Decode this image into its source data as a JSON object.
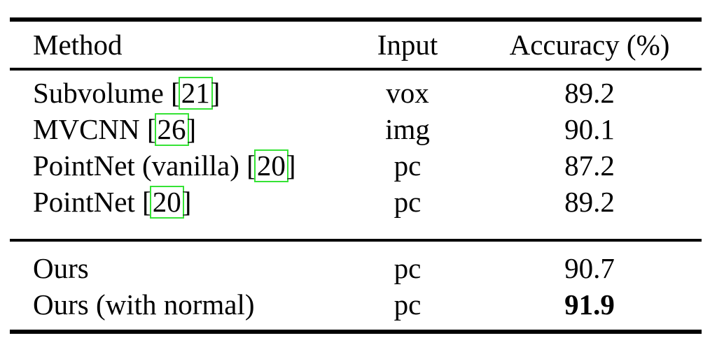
{
  "table": {
    "header": {
      "method": "Method",
      "input": "Input",
      "accuracy": "Accuracy (%)"
    },
    "groups": [
      {
        "rows": [
          {
            "method_pre": "Subvolume [",
            "cite": "21",
            "method_post": "]",
            "input": "vox",
            "accuracy": "89.2"
          },
          {
            "method_pre": "MVCNN [",
            "cite": "26",
            "method_post": "]",
            "input": "img",
            "accuracy": "90.1"
          },
          {
            "method_pre": "PointNet (vanilla) [",
            "cite": "20",
            "method_post": "]",
            "input": "pc",
            "accuracy": "87.2"
          },
          {
            "method_pre": "PointNet [",
            "cite": "20",
            "method_post": "]",
            "input": "pc",
            "accuracy": "89.2"
          }
        ]
      },
      {
        "rows": [
          {
            "method_pre": "Ours",
            "input": "pc",
            "accuracy": "90.7"
          },
          {
            "method_pre": "Ours (with normal)",
            "input": "pc",
            "accuracy": "91.9"
          }
        ]
      }
    ]
  },
  "colors": {
    "citation_link_box": "#35e335",
    "rule": "#000000",
    "text": "#000000"
  }
}
